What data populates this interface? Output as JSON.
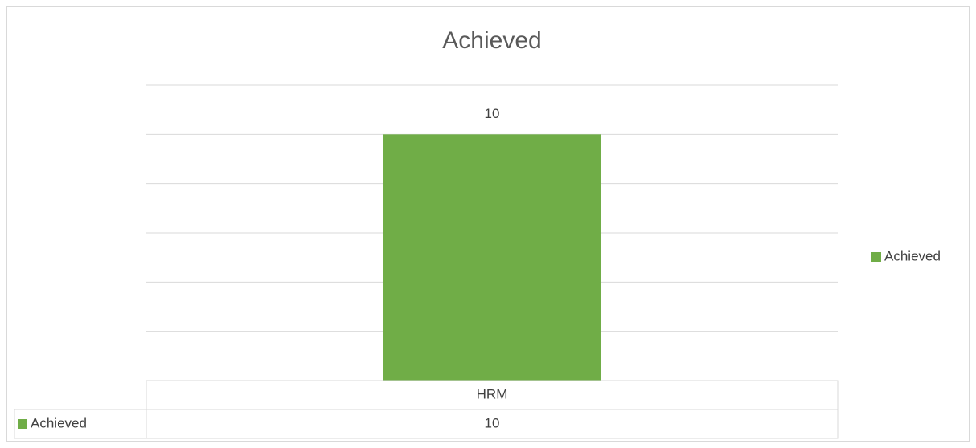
{
  "chart_data": {
    "type": "bar",
    "title": "Achieved",
    "categories": [
      "HRM"
    ],
    "series": [
      {
        "name": "Achieved",
        "color": "#70ad47",
        "values": [
          10
        ]
      }
    ],
    "ylim": [
      0,
      12
    ],
    "yticks": [
      0,
      2,
      4,
      6,
      8,
      10,
      12
    ],
    "grid": true,
    "legend": "right",
    "data_table": true
  }
}
